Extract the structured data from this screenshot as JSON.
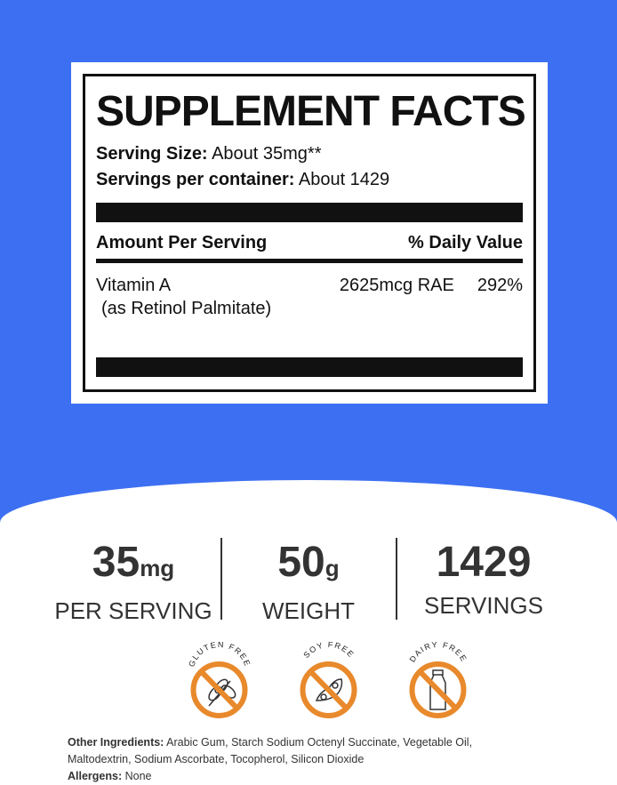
{
  "label": {
    "title": "SUPPLEMENT FACTS",
    "serving_size_label": "Serving Size:",
    "serving_size_value": "About 35mg**",
    "servings_label": "Servings per container:",
    "servings_value": "About 1429",
    "amount_header": "Amount Per Serving",
    "dv_header": "% Daily Value",
    "nutrient": {
      "name": "Vitamin A",
      "sub": "(as Retinol Palmitate)",
      "amount": "2625mcg RAE",
      "dv": "292%"
    }
  },
  "stats": [
    {
      "value": "35",
      "unit": "mg",
      "label": "PER SERVING"
    },
    {
      "value": "50",
      "unit": "g",
      "label": "WEIGHT"
    },
    {
      "value": "1429",
      "unit": "",
      "label": "SERVINGS"
    }
  ],
  "badges": [
    {
      "text": "GLUTEN FREE",
      "icon": "wheat-icon"
    },
    {
      "text": "SOY FREE",
      "icon": "soybean-icon"
    },
    {
      "text": "DAIRY FREE",
      "icon": "milk-bottle-icon"
    }
  ],
  "ingredients": {
    "label": "Other Ingredients:",
    "text": "Arabic Gum, Starch Sodium Octenyl Succinate, Vegetable Oil,",
    "text2": "Maltodextrin, Sodium Ascorbate, Tocopherol, Silicon Dioxide",
    "allergens_label": "Allergens:",
    "allergens_value": "None"
  },
  "colors": {
    "background_blue": "#3d6ff2",
    "badge_orange": "#e8892c"
  }
}
